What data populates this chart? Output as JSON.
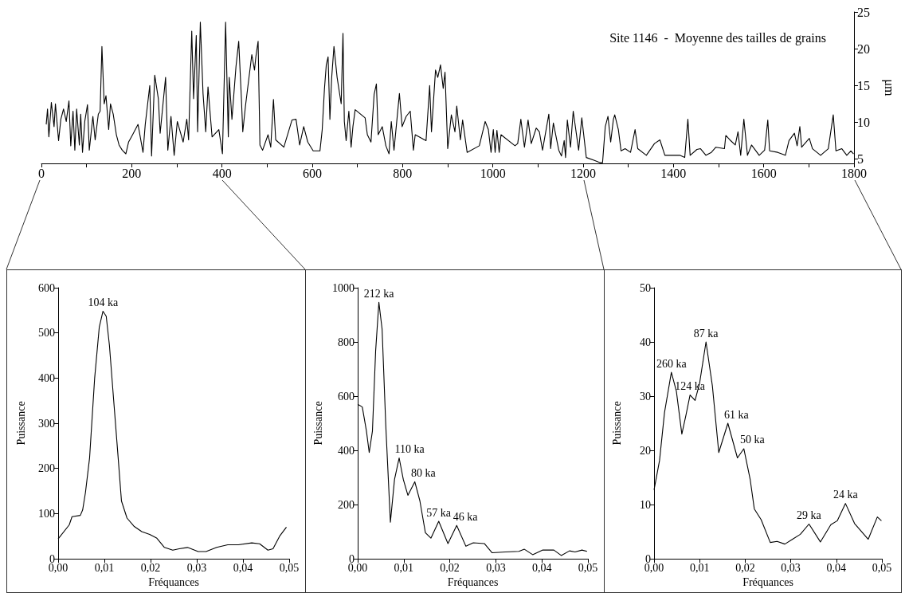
{
  "chart_data": [
    {
      "type": "line",
      "title": "Site 1146  -  Moyenne des tailles de grains",
      "ylabel": "μm",
      "xlim": [
        0,
        1800
      ],
      "xticks": [
        0,
        {
          "value": 100,
          "label": null
        },
        200,
        {
          "value": 300,
          "label": null
        },
        400,
        {
          "value": 500,
          "label": null
        },
        600,
        {
          "value": 700,
          "label": null
        },
        800,
        {
          "value": 900,
          "label": null
        },
        1000,
        {
          "value": 1100,
          "label": null
        },
        1200,
        {
          "value": 1300,
          "label": null
        },
        1400,
        {
          "value": 1500,
          "label": null
        },
        1600,
        {
          "value": 1700,
          "label": null
        },
        1800
      ],
      "ylim": [
        4.4,
        25
      ],
      "yticks": [
        5,
        10,
        15,
        20,
        25
      ],
      "x": [
        10.6,
        13.5,
        16.5,
        22,
        28,
        31,
        38,
        43,
        49,
        55,
        61,
        65,
        70,
        74,
        78,
        84,
        87,
        91,
        96,
        102,
        106,
        114,
        119,
        126,
        130,
        134,
        139,
        143,
        149,
        153,
        159,
        166,
        172,
        179,
        187,
        193,
        202,
        214,
        225,
        230,
        240,
        244,
        251,
        259,
        263,
        275,
        280,
        287,
        294,
        301,
        314,
        322,
        326,
        333,
        337,
        343,
        346,
        352,
        358,
        364,
        369,
        378,
        393,
        401,
        408,
        414,
        416,
        422,
        431,
        437,
        443,
        446,
        452,
        464,
        466,
        472,
        475,
        480,
        484,
        490,
        502,
        508,
        514,
        519,
        537,
        555,
        564,
        572,
        581,
        590,
        602,
        617,
        622,
        627,
        631,
        635,
        639,
        643,
        648,
        655,
        664,
        668,
        671,
        675,
        681,
        686,
        690,
        695,
        717,
        722,
        730,
        737,
        742,
        746,
        755,
        763,
        770,
        775,
        781,
        793,
        799,
        808,
        817,
        824,
        828,
        852,
        860,
        864,
        873,
        878,
        884,
        890,
        894,
        900,
        908,
        916,
        920,
        928,
        933,
        943,
        970,
        983,
        990,
        996,
        1001,
        1005,
        1009,
        1014,
        1018,
        1049,
        1055,
        1062,
        1070,
        1078,
        1085,
        1096,
        1103,
        1110,
        1124,
        1128,
        1134,
        1146,
        1152,
        1158,
        1161,
        1165,
        1172,
        1178,
        1190,
        1197,
        1207,
        1225,
        1237,
        1243,
        1249,
        1255,
        1261,
        1267,
        1270,
        1278,
        1284,
        1293,
        1305,
        1315,
        1321,
        1340,
        1358,
        1370,
        1381,
        1414,
        1425,
        1432,
        1437,
        1452,
        1460,
        1472,
        1484,
        1494,
        1513,
        1516,
        1525,
        1537,
        1543,
        1549,
        1556,
        1564,
        1573,
        1590,
        1602,
        1609,
        1613,
        1631,
        1648,
        1656,
        1668,
        1674,
        1680,
        1684,
        1701,
        1708,
        1726,
        1743,
        1754,
        1760,
        1773,
        1784,
        1793,
        1799
      ],
      "series": [
        {
          "color": "#000000",
          "values": [
            9.7,
            11.8,
            8.0,
            12.7,
            9.4,
            12.5,
            7.5,
            10.4,
            11.8,
            10.1,
            12.9,
            6.8,
            11.5,
            6.2,
            11.8,
            6.9,
            11.1,
            5.9,
            10.1,
            12.4,
            6.2,
            10.8,
            7.6,
            11.1,
            11.5,
            20.3,
            12.5,
            13.6,
            9.0,
            12.5,
            11.1,
            8.3,
            6.9,
            6.2,
            5.7,
            7.3,
            8.3,
            9.7,
            5.9,
            9.7,
            15.0,
            5.4,
            16.4,
            13.2,
            8.5,
            16.1,
            6.2,
            10.8,
            5.5,
            10.1,
            7.3,
            10.4,
            7.6,
            22.4,
            13.2,
            21.8,
            8.7,
            23.6,
            13.9,
            8.7,
            14.8,
            8.0,
            9.0,
            5.7,
            23.6,
            8.0,
            16.1,
            10.4,
            17.6,
            21.0,
            13.2,
            8.7,
            12.2,
            18.2,
            19.2,
            17.1,
            18.9,
            21.0,
            6.9,
            6.2,
            8.3,
            6.6,
            13.1,
            7.6,
            6.6,
            10.3,
            10.4,
            6.9,
            9.4,
            7.3,
            6.1,
            6.1,
            9.0,
            14.6,
            17.8,
            18.9,
            10.4,
            16.1,
            20.3,
            16.1,
            12.5,
            22.1,
            10.1,
            7.5,
            11.5,
            6.6,
            9.4,
            11.7,
            10.6,
            8.3,
            7.3,
            13.8,
            15.2,
            8.3,
            9.4,
            6.8,
            5.7,
            10.1,
            6.2,
            13.9,
            9.4,
            10.8,
            11.5,
            6.2,
            8.3,
            7.5,
            15.0,
            8.7,
            17.1,
            16.1,
            17.8,
            14.6,
            16.8,
            6.4,
            11.0,
            8.7,
            12.2,
            7.6,
            10.3,
            5.9,
            6.8,
            10.1,
            9.0,
            5.9,
            9.0,
            5.9,
            8.9,
            5.9,
            8.3,
            6.8,
            7.1,
            10.4,
            6.6,
            10.3,
            7.1,
            9.2,
            8.7,
            6.2,
            11.1,
            6.4,
            9.9,
            6.2,
            5.4,
            7.5,
            5.2,
            10.3,
            6.6,
            11.5,
            6.2,
            10.6,
            5.2,
            4.8,
            4.5,
            4.5,
            9.4,
            10.8,
            7.3,
            10.4,
            11.0,
            9.0,
            6.1,
            6.4,
            5.9,
            9.0,
            6.4,
            5.5,
            7.1,
            7.6,
            5.5,
            5.5,
            5.2,
            10.4,
            5.5,
            6.3,
            6.4,
            5.5,
            5.9,
            6.6,
            6.4,
            8.2,
            7.6,
            6.9,
            8.7,
            5.5,
            10.4,
            5.5,
            6.9,
            5.5,
            6.2,
            10.3,
            6.1,
            5.9,
            5.5,
            7.5,
            8.5,
            6.8,
            9.4,
            6.6,
            7.8,
            6.4,
            5.5,
            6.4,
            11.0,
            6.1,
            6.4,
            5.5,
            6.1,
            5.7
          ]
        }
      ]
    },
    {
      "type": "line",
      "xlabel": "Fréquances",
      "ylabel": "Puissance",
      "xlim": [
        0,
        0.05
      ],
      "xticks": [
        {
          "value": 0,
          "label": "0,00"
        },
        {
          "value": 0.01,
          "label": "0,01"
        },
        {
          "value": 0.02,
          "label": "0,02"
        },
        {
          "value": 0.03,
          "label": "0,03"
        },
        {
          "value": 0.04,
          "label": "0,04"
        },
        {
          "value": 0.05,
          "label": "0,05"
        }
      ],
      "ylim": [
        0,
        600
      ],
      "yticks": [
        0,
        100,
        200,
        300,
        400,
        500,
        600
      ],
      "x": [
        0,
        0.0024,
        0.003,
        0.0048,
        0.0053,
        0.0059,
        0.0068,
        0.0079,
        0.0089,
        0.0097,
        0.0104,
        0.0111,
        0.012,
        0.0129,
        0.0137,
        0.0149,
        0.0164,
        0.0181,
        0.0198,
        0.0213,
        0.023,
        0.0248,
        0.0262,
        0.028,
        0.0303,
        0.032,
        0.0343,
        0.0367,
        0.039,
        0.0419,
        0.0436,
        0.0454,
        0.0465,
        0.048,
        0.0494
      ],
      "series": [
        {
          "color": "#000000",
          "values": [
            44,
            75,
            93,
            96,
            108,
            146,
            223,
            400,
            513,
            548,
            537,
            472,
            353,
            235,
            128,
            90,
            72,
            60,
            54,
            46,
            25,
            19,
            22,
            25,
            16,
            16,
            25,
            31,
            31,
            35,
            33,
            19,
            22,
            51,
            70
          ]
        }
      ],
      "annotations": [
        {
          "text": "104 ka",
          "x": 0.0097,
          "y": 548
        }
      ]
    },
    {
      "type": "line",
      "xlabel": "Fréquances",
      "ylabel": "Puissance",
      "xlim": [
        0,
        0.05
      ],
      "xticks": [
        {
          "value": 0,
          "label": "0,00"
        },
        {
          "value": 0.01,
          "label": "0,01"
        },
        {
          "value": 0.02,
          "label": "0,02"
        },
        {
          "value": 0.03,
          "label": "0,03"
        },
        {
          "value": 0.04,
          "label": "0,04"
        },
        {
          "value": 0.05,
          "label": "0,05"
        }
      ],
      "ylim": [
        0,
        1000
      ],
      "yticks": [
        0,
        200,
        400,
        600,
        800,
        1000
      ],
      "x": [
        0,
        0.001,
        0.0019,
        0.0025,
        0.0032,
        0.0039,
        0.0046,
        0.0053,
        0.0061,
        0.0071,
        0.008,
        0.009,
        0.0099,
        0.0109,
        0.0124,
        0.0135,
        0.0147,
        0.0159,
        0.0176,
        0.0196,
        0.0215,
        0.0235,
        0.0251,
        0.0275,
        0.0292,
        0.0321,
        0.035,
        0.0362,
        0.038,
        0.0402,
        0.0426,
        0.0442,
        0.046,
        0.0472,
        0.0487,
        0.0498
      ],
      "series": [
        {
          "color": "#000000",
          "values": [
            570,
            560,
            471,
            392,
            471,
            768,
            946,
            847,
            491,
            135,
            293,
            372,
            293,
            234,
            284,
            214,
            96,
            76,
            138,
            56,
            123,
            46,
            59,
            56,
            22,
            25,
            27,
            35,
            15,
            32,
            32,
            12,
            29,
            25,
            32,
            27
          ]
        }
      ],
      "annotations": [
        {
          "text": "212 ka",
          "x": 0.0046,
          "y": 946
        },
        {
          "text": "110 ka",
          "x": 0.009,
          "y": 372
        },
        {
          "text": "80 ka",
          "x": 0.0124,
          "y": 284
        },
        {
          "text": "57 ka",
          "x": 0.0176,
          "y": 138
        },
        {
          "text": "46 ka",
          "x": 0.0215,
          "y": 123
        }
      ]
    },
    {
      "type": "line",
      "xlabel": "Fréquances",
      "ylabel": "Puissance",
      "xlim": [
        0,
        0.05
      ],
      "xticks": [
        {
          "value": 0,
          "label": "0,00"
        },
        {
          "value": 0.01,
          "label": "0,01"
        },
        {
          "value": 0.02,
          "label": "0,02"
        },
        {
          "value": 0.03,
          "label": "0,03"
        },
        {
          "value": 0.04,
          "label": "0,04"
        },
        {
          "value": 0.05,
          "label": "0,05"
        }
      ],
      "ylim": [
        0,
        50
      ],
      "yticks": [
        0,
        10,
        20,
        30,
        40,
        50
      ],
      "x": [
        0,
        0.0012,
        0.0023,
        0.0038,
        0.0049,
        0.0061,
        0.007,
        0.0079,
        0.009,
        0.01,
        0.0114,
        0.0128,
        0.0142,
        0.0162,
        0.0183,
        0.0197,
        0.0211,
        0.022,
        0.0235,
        0.0255,
        0.027,
        0.0287,
        0.0304,
        0.0321,
        0.034,
        0.0365,
        0.0388,
        0.0402,
        0.042,
        0.044,
        0.047,
        0.049,
        0.0499
      ],
      "series": [
        {
          "color": "#000000",
          "values": [
            12.7,
            18.1,
            27,
            34.4,
            30.9,
            23,
            26.5,
            30.2,
            29.2,
            32.4,
            40,
            31.9,
            19.6,
            25,
            18.6,
            20.3,
            14.6,
            9.2,
            7.2,
            3,
            3.2,
            2.7,
            3.6,
            4.5,
            6.4,
            3.1,
            6.3,
            7,
            10.2,
            6.5,
            3.6,
            7.7,
            7
          ]
        }
      ],
      "annotations": [
        {
          "text": "260 ka",
          "x": 0.0038,
          "y": 34.4
        },
        {
          "text": "124 ka",
          "x": 0.0079,
          "y": 30.2
        },
        {
          "text": "87 ka",
          "x": 0.0114,
          "y": 40
        },
        {
          "text": "61 ka",
          "x": 0.0162,
          "y": 25
        },
        {
          "text": "50 ka",
          "x": 0.0197,
          "y": 20.3
        },
        {
          "text": "29 ka",
          "x": 0.034,
          "y": 6.4
        },
        {
          "text": "24 ka",
          "x": 0.042,
          "y": 10.2
        }
      ]
    }
  ]
}
